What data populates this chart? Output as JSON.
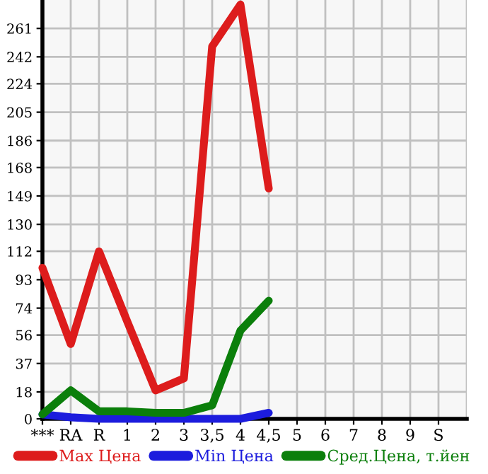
{
  "chart_data": {
    "type": "line",
    "categories": [
      "***",
      "RA",
      "R",
      "1",
      "2",
      "3",
      "3,5",
      "4",
      "4,5",
      "5",
      "6",
      "7",
      "8",
      "9",
      "S"
    ],
    "series": [
      {
        "name": "Max Цена",
        "color": "#dd1c1c",
        "values": [
          101,
          50,
          112,
          65,
          19,
          27,
          249,
          277,
          154,
          null,
          null,
          null,
          null,
          null,
          null
        ]
      },
      {
        "name": "Min Цена",
        "color": "#1c1cdd",
        "values": [
          3,
          1,
          0,
          0,
          0,
          0,
          0,
          0,
          4,
          null,
          null,
          null,
          null,
          null,
          null
        ]
      },
      {
        "name": "Сред.Цена, т.йен",
        "color": "#0b7f0b",
        "values": [
          3,
          19,
          5,
          5,
          4,
          4,
          9,
          59,
          79,
          null,
          null,
          null,
          null,
          null,
          null
        ]
      }
    ],
    "ylim": [
      0,
      280
    ],
    "yticks": [
      0,
      18,
      37,
      56,
      74,
      93,
      112,
      130,
      149,
      168,
      186,
      205,
      224,
      242,
      261
    ],
    "grid": true,
    "legend": "bottom",
    "marker": "none",
    "line_style": "solid"
  }
}
